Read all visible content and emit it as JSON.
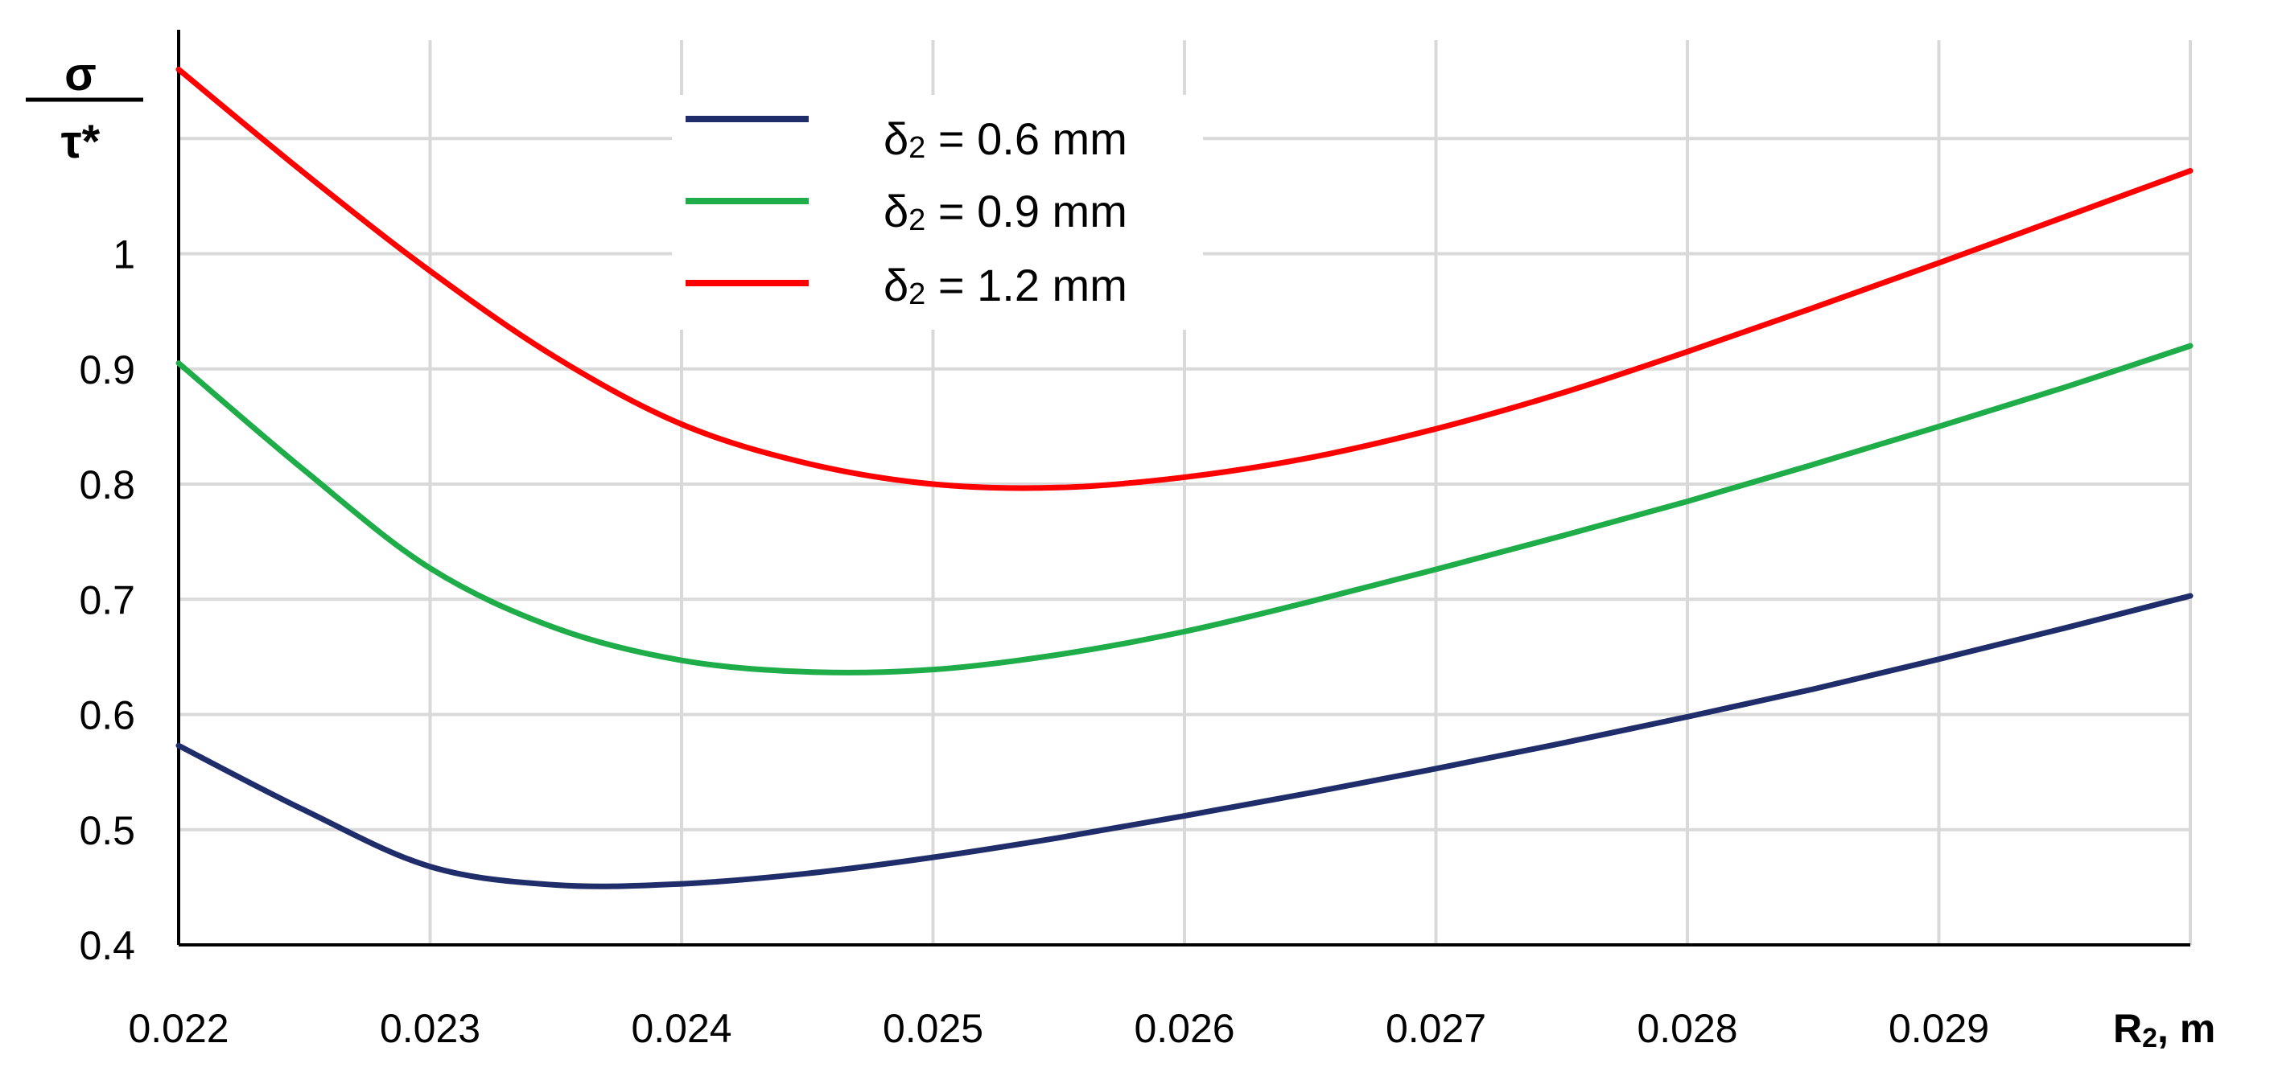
{
  "chart_data": {
    "type": "line",
    "ylabel": "σ / τ*",
    "ylabel_top": "σ",
    "ylabel_bottom": "τ*",
    "xlabel": "R2, m",
    "xlabel_main": "R",
    "xlabel_sub": "2",
    "xlabel_unit": ", m",
    "xlim": [
      0.022,
      0.03
    ],
    "ylim": [
      0.4,
      1.17
    ],
    "grid": true,
    "legend_position": "top-center",
    "x_ticks": [
      "0.022",
      "0.023",
      "0.024",
      "0.025",
      "0.026",
      "0.027",
      "0.028",
      "0.029"
    ],
    "x_tick_values": [
      0.022,
      0.023,
      0.024,
      0.025,
      0.026,
      0.027,
      0.028,
      0.029
    ],
    "y_ticks": [
      "0.4",
      "0.5",
      "0.6",
      "0.7",
      "0.8",
      "0.9",
      "1"
    ],
    "y_tick_values": [
      0.4,
      0.5,
      0.6,
      0.7,
      0.8,
      0.9,
      1.0
    ],
    "series": [
      {
        "name": "δ2 = 0.6 mm",
        "name_prefix": "δ",
        "name_sub": "2",
        "name_suffix": " = 0.6 mm",
        "color": "#1f2d6b",
        "x": [
          0.022,
          0.0225,
          0.023,
          0.0235,
          0.024,
          0.0245,
          0.025,
          0.0255,
          0.026,
          0.0265,
          0.027,
          0.0275,
          0.028,
          0.0285,
          0.029,
          0.0295,
          0.03
        ],
        "values": [
          0.573,
          0.517,
          0.468,
          0.452,
          0.453,
          0.462,
          0.476,
          0.493,
          0.512,
          0.532,
          0.553,
          0.575,
          0.598,
          0.622,
          0.648,
          0.675,
          0.703
        ]
      },
      {
        "name": "δ2 = 0.9 mm",
        "name_prefix": "δ",
        "name_sub": "2",
        "name_suffix": " = 0.9 mm",
        "color": "#1fad4a",
        "x": [
          0.022,
          0.0225,
          0.023,
          0.0235,
          0.024,
          0.0245,
          0.025,
          0.0255,
          0.026,
          0.0265,
          0.027,
          0.0275,
          0.028,
          0.0285,
          0.029,
          0.0295,
          0.03
        ],
        "values": [
          0.905,
          0.812,
          0.727,
          0.675,
          0.647,
          0.637,
          0.639,
          0.652,
          0.672,
          0.698,
          0.726,
          0.755,
          0.785,
          0.817,
          0.85,
          0.884,
          0.92
        ]
      },
      {
        "name": "δ2 = 1.2 mm",
        "name_prefix": "δ",
        "name_sub": "2",
        "name_suffix": " = 1.2 mm",
        "color": "#ff0000",
        "x": [
          0.022,
          0.0225,
          0.023,
          0.0235,
          0.024,
          0.0245,
          0.025,
          0.0255,
          0.026,
          0.0265,
          0.027,
          0.0275,
          0.028,
          0.0285,
          0.029,
          0.0295,
          0.03
        ],
        "values": [
          1.16,
          1.07,
          0.985,
          0.91,
          0.852,
          0.818,
          0.8,
          0.797,
          0.806,
          0.823,
          0.848,
          0.879,
          0.915,
          0.953,
          0.992,
          1.032,
          1.072
        ]
      }
    ]
  }
}
